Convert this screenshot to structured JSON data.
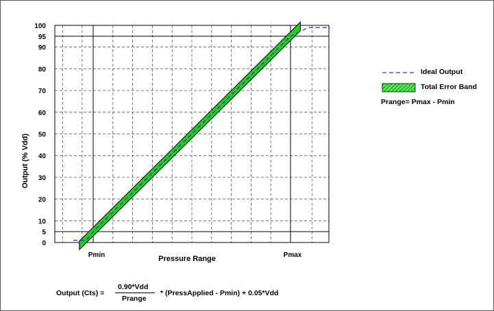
{
  "chart_data": {
    "type": "line",
    "xlabel": "Pressure Range",
    "ylabel": "Output (% Vdd)",
    "x_ticks": [
      "Pmin",
      "Pmax"
    ],
    "y_ticks": [
      0,
      5,
      10,
      20,
      30,
      40,
      50,
      60,
      70,
      80,
      90,
      95,
      100
    ],
    "ylim": [
      0,
      100
    ],
    "grid": true,
    "legend_position": "right",
    "series": [
      {
        "name": "Ideal Output",
        "style": "dashed",
        "color": "#3333cc",
        "points": [
          [
            -0.1,
            1
          ],
          [
            -0.035,
            1
          ],
          [
            0,
            5
          ],
          [
            1,
            95
          ],
          [
            1.09,
            99
          ],
          [
            1.2,
            99
          ]
        ]
      },
      {
        "name": "Total Error Band",
        "style": "band",
        "color": "#22cc22",
        "band_half_width": 2,
        "x_range": [
          -0.07,
          1.05
        ]
      }
    ]
  },
  "legend": {
    "ideal_label": "Ideal Output",
    "band_label": "Total Error Band",
    "prange_note": "Prange= Pmax - Pmin"
  },
  "formula": {
    "lhs": "Output (Cts) =",
    "numerator": "0.90*Vdd",
    "denominator": "Prange",
    "rest": "* (PressApplied - Pmin) + 0.05*Vdd"
  }
}
